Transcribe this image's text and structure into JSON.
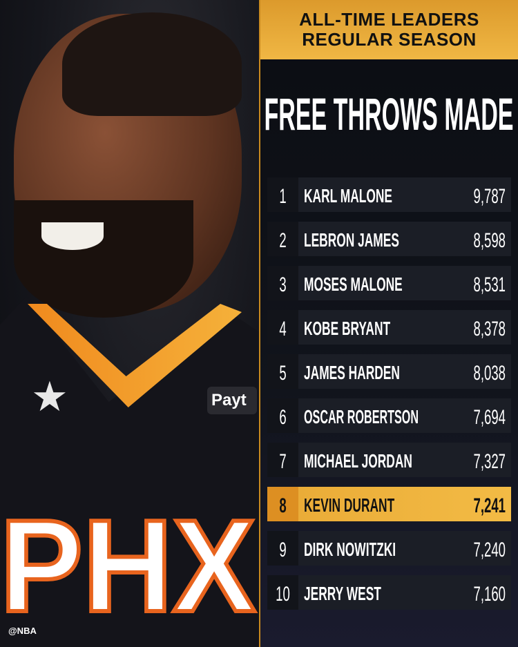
{
  "header": {
    "line1": "ALL-TIME LEADERS",
    "line2": "REGULAR SEASON"
  },
  "title": "FREE THROWS MADE",
  "photo": {
    "jersey_text": "PHX",
    "patch_text": "Payt",
    "watermark": "@NBA"
  },
  "colors": {
    "accent": "#f0b744",
    "highlight_row": "#f3bb45",
    "background": "#0e1016"
  },
  "leaders": [
    {
      "rank": "1",
      "name": "KARL MALONE",
      "value": "9,787"
    },
    {
      "rank": "2",
      "name": "LEBRON JAMES",
      "value": "8,598"
    },
    {
      "rank": "3",
      "name": "MOSES MALONE",
      "value": "8,531"
    },
    {
      "rank": "4",
      "name": "KOBE BRYANT",
      "value": "8,378"
    },
    {
      "rank": "5",
      "name": "JAMES HARDEN",
      "value": "8,038"
    },
    {
      "rank": "6",
      "name": "OSCAR ROBERTSON",
      "value": "7,694"
    },
    {
      "rank": "7",
      "name": "MICHAEL JORDAN",
      "value": "7,327"
    },
    {
      "rank": "8",
      "name": "KEVIN DURANT",
      "value": "7,241",
      "highlighted": true
    },
    {
      "rank": "9",
      "name": "DIRK NOWITZKI",
      "value": "7,240"
    },
    {
      "rank": "10",
      "name": "JERRY WEST",
      "value": "7,160"
    }
  ]
}
